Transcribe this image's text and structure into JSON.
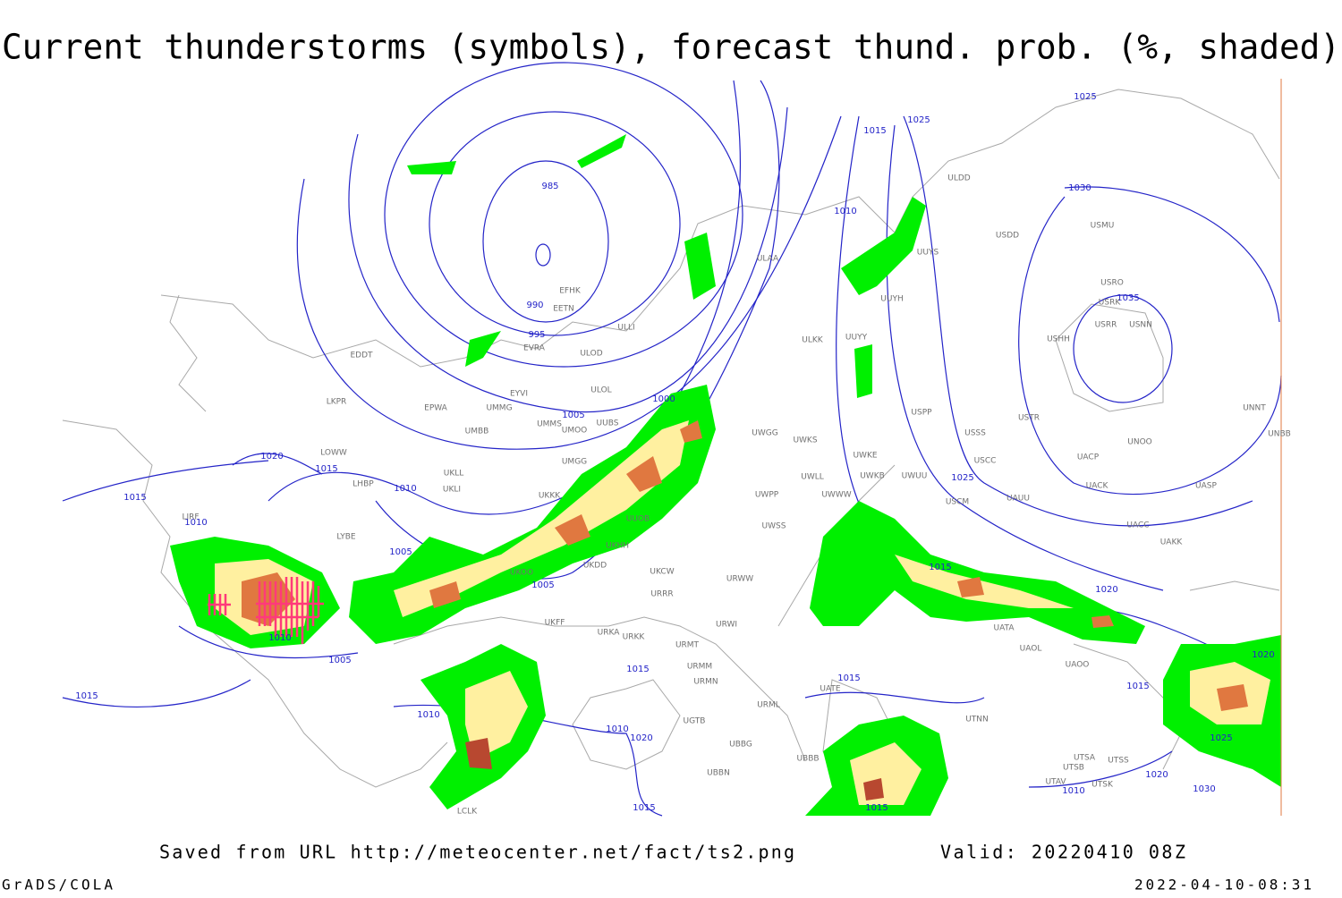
{
  "title": "Current thunderstorms (symbols), forecast thund. prob. (%, shaded)",
  "footer": {
    "source": "Saved from URL http://meteocenter.net/fact/ts2.png",
    "valid": "Valid: 20220410 08Z",
    "software": "GrADS/COLA",
    "timestamp": "2022-04-10-08:31"
  },
  "isobar_labels": [
    "985",
    "990",
    "995",
    "1000",
    "1005",
    "1005",
    "1005",
    "1005",
    "1010",
    "1010",
    "1010",
    "1010",
    "1010",
    "1010",
    "1010",
    "1015",
    "1015",
    "1015",
    "1015",
    "1015",
    "1015",
    "1015",
    "1015",
    "1015",
    "1015",
    "1020",
    "1020",
    "1020",
    "1020",
    "1020",
    "1025",
    "1025",
    "1025",
    "1025",
    "1030",
    "1030",
    "1035"
  ],
  "stations": [
    "ULDD",
    "USMU",
    "USDD",
    "UUYS",
    "ULAA",
    "USRO",
    "USRK",
    "USRR",
    "USNN",
    "USHH",
    "UUYH",
    "UUYY",
    "ULKK",
    "ULLI",
    "EFHK",
    "EETN",
    "EVRA",
    "ULOD",
    "EDDT",
    "EYVI",
    "ULOL",
    "UMMG",
    "EPWA",
    "UMMS",
    "UMOO",
    "UUBS",
    "UMBB",
    "LKPR",
    "UWGG",
    "UWKS",
    "USSS",
    "USTR",
    "USPP",
    "UNNT",
    "UNBB",
    "UNOO",
    "UACP",
    "USCC",
    "UWKE",
    "UWKB",
    "UWUU",
    "UWLL",
    "UWWW",
    "UWPP",
    "USCM",
    "UAUU",
    "UACK",
    "UASP",
    "UACC",
    "UAKK",
    "UMGG",
    "UKLL",
    "UKLI",
    "LOWW",
    "LHBP",
    "UKKK",
    "UKOO",
    "LYBE",
    "LIRF",
    "UKDD",
    "UKHH",
    "UUOB",
    "UWSS",
    "URWW",
    "UKCW",
    "URRR",
    "URWI",
    "UKFF",
    "URKA",
    "URKK",
    "URMT",
    "URMM",
    "URMN",
    "URML",
    "UATE",
    "UATA",
    "UAOL",
    "UAOO",
    "UTNN",
    "UGTB",
    "UBBG",
    "UBBN",
    "UBBB",
    "UTSA",
    "UTSS",
    "UTSB",
    "UTAV",
    "UTSK",
    "LCLK"
  ]
}
